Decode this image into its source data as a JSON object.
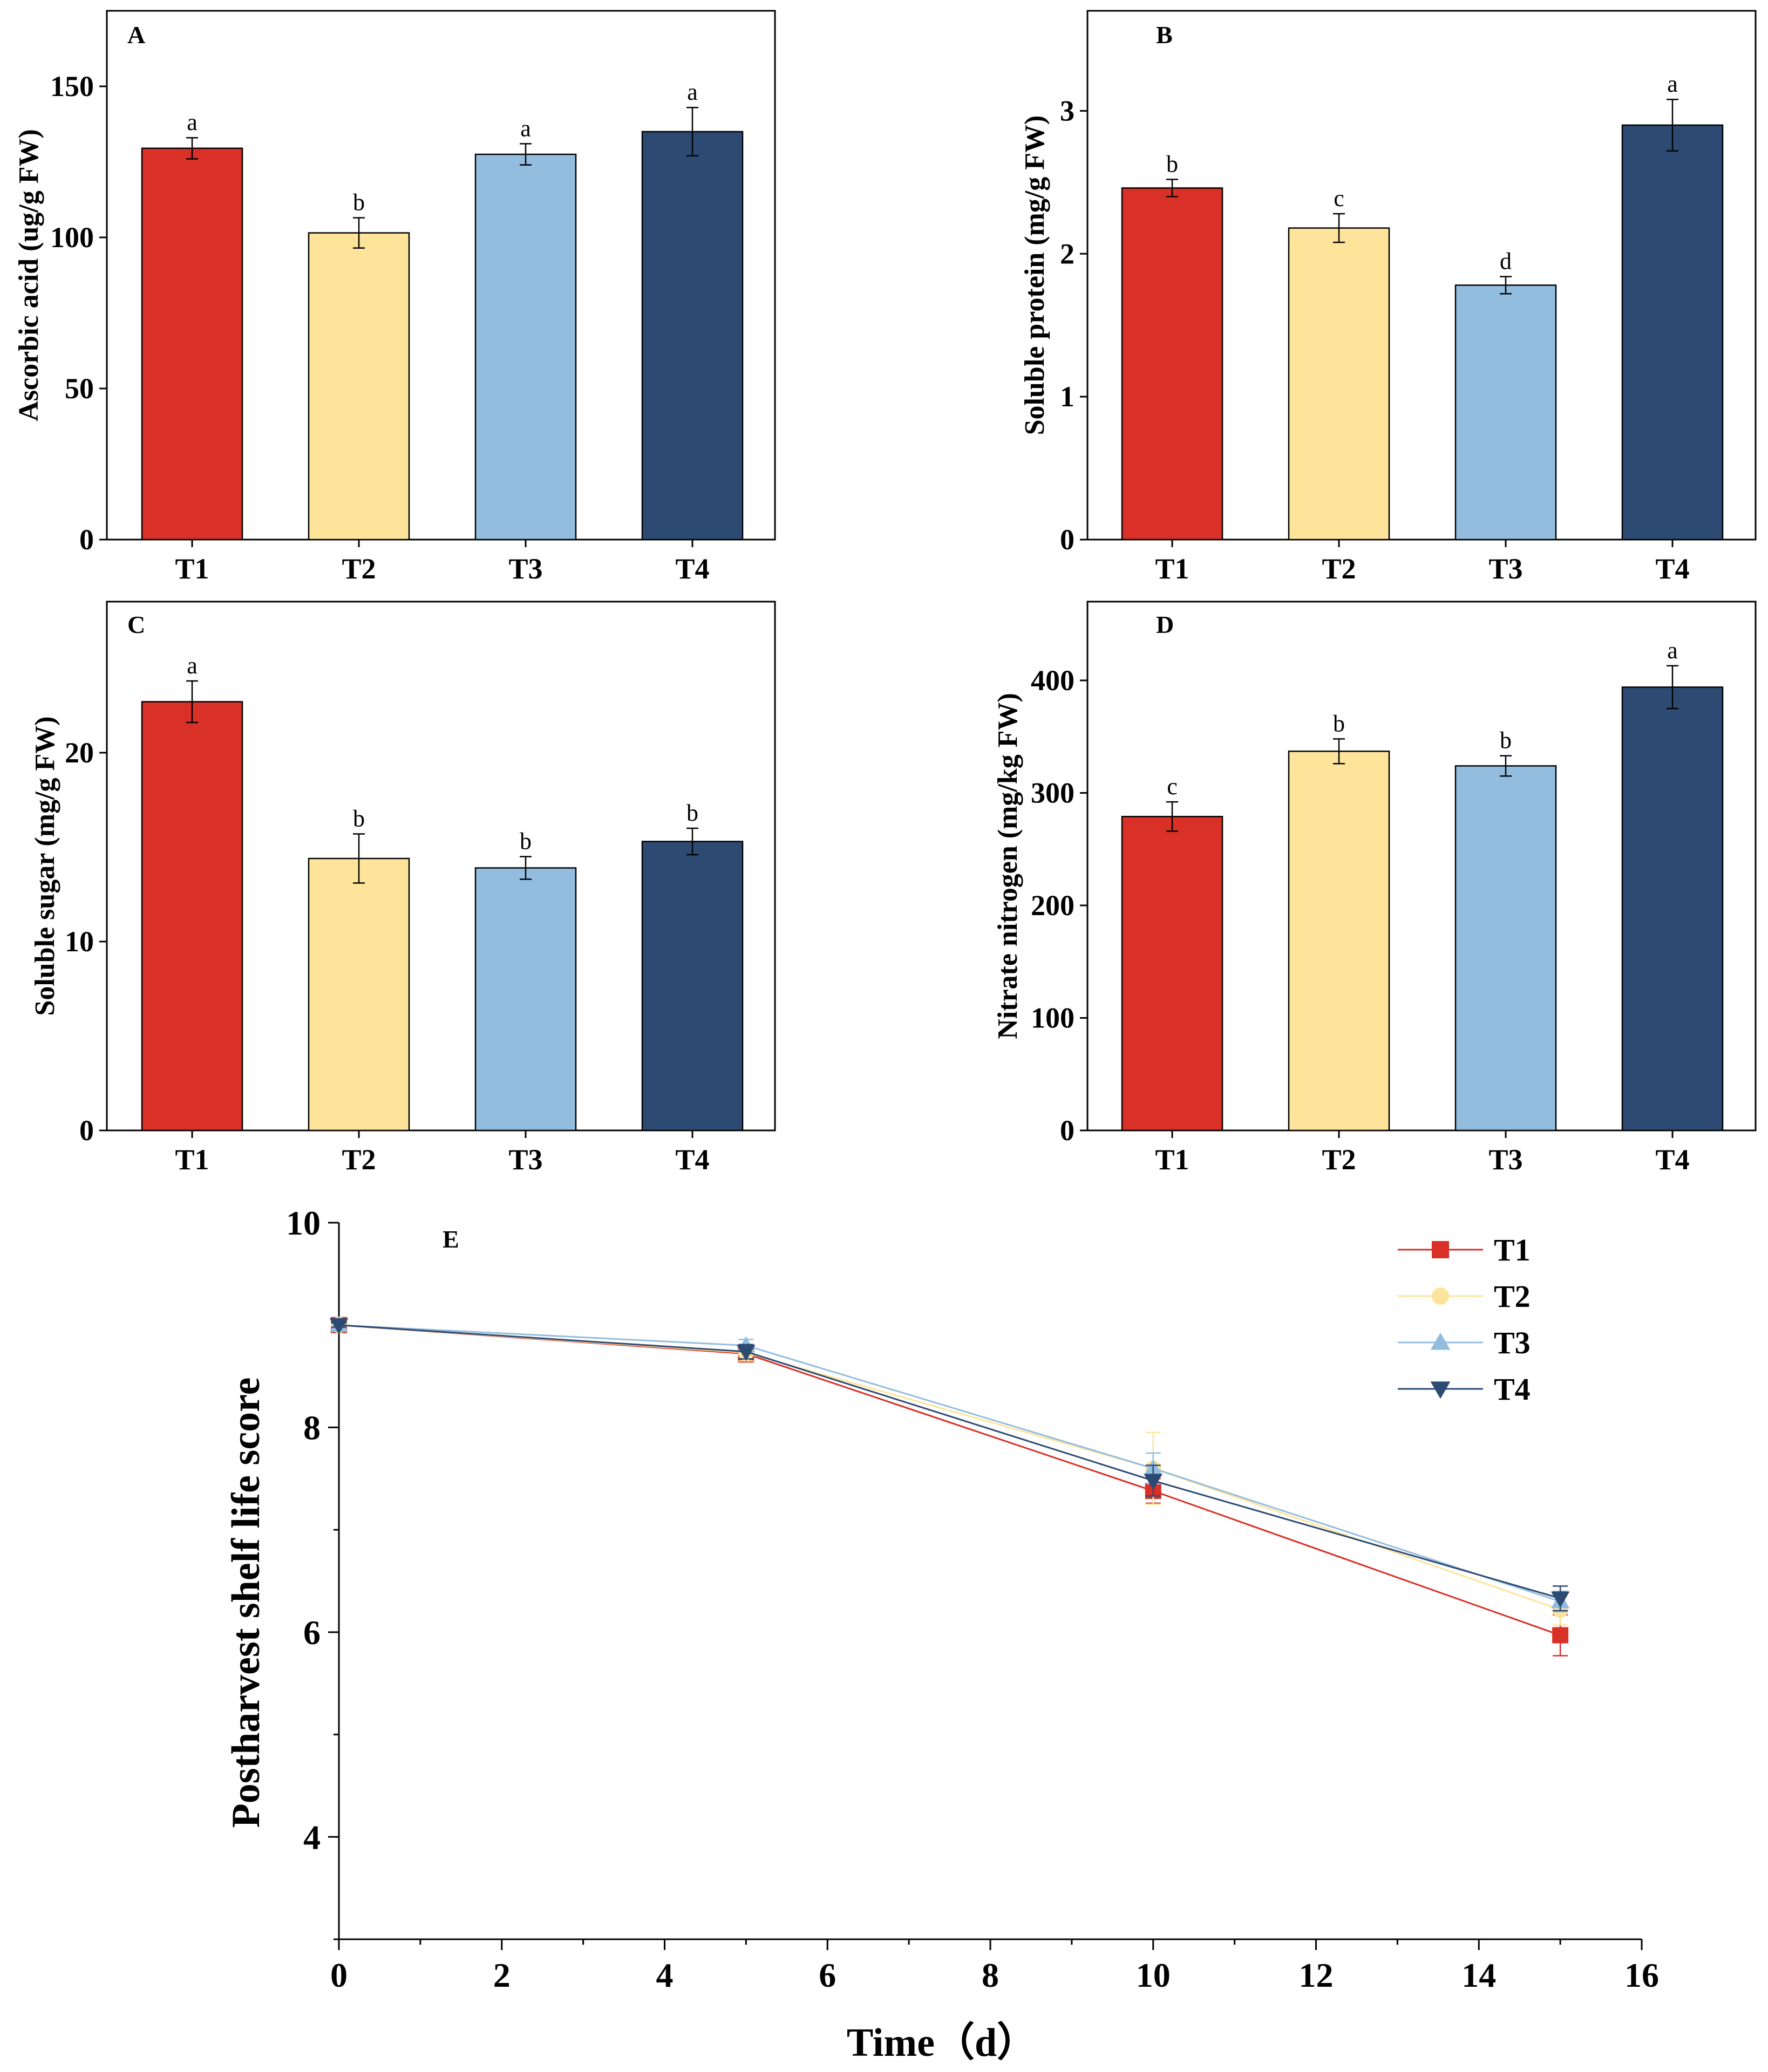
{
  "chart_data": [
    {
      "type": "bar",
      "panel": "A",
      "categories": [
        "T1",
        "T2",
        "T3",
        "T4"
      ],
      "values": [
        129.5,
        101.5,
        127.5,
        135
      ],
      "errors": [
        3.5,
        5,
        3.5,
        8
      ],
      "significance": [
        "a",
        "b",
        "a",
        "a"
      ],
      "colors": [
        "#d93027",
        "#fde49a",
        "#93bddf",
        "#2c4a72"
      ],
      "ylabel": "Ascorbic acid (ug/g FW)",
      "ylim": [
        0,
        175
      ],
      "yticks": [
        0,
        50,
        100,
        150
      ]
    },
    {
      "type": "bar",
      "panel": "B",
      "categories": [
        "T1",
        "T2",
        "T3",
        "T4"
      ],
      "values": [
        2.46,
        2.18,
        1.78,
        2.9
      ],
      "errors": [
        0.06,
        0.1,
        0.06,
        0.18
      ],
      "significance": [
        "b",
        "c",
        "d",
        "a"
      ],
      "colors": [
        "#d93027",
        "#fde49a",
        "#93bddf",
        "#2c4a72"
      ],
      "ylabel": "Soluble protein (mg/g FW)",
      "ylim": [
        0,
        3.7
      ],
      "yticks": [
        0,
        1,
        2,
        3
      ]
    },
    {
      "type": "bar",
      "panel": "C",
      "categories": [
        "T1",
        "T2",
        "T3",
        "T4"
      ],
      "values": [
        22.7,
        14.4,
        13.9,
        15.3
      ],
      "errors": [
        1.1,
        1.3,
        0.6,
        0.7
      ],
      "significance": [
        "a",
        "b",
        "b",
        "b"
      ],
      "colors": [
        "#d93027",
        "#fde49a",
        "#93bddf",
        "#2c4a72"
      ],
      "ylabel": "Soluble sugar (mg/g FW)",
      "ylim": [
        0,
        28
      ],
      "yticks": [
        0,
        10,
        20
      ]
    },
    {
      "type": "bar",
      "panel": "D",
      "categories": [
        "T1",
        "T2",
        "T3",
        "T4"
      ],
      "values": [
        279,
        337,
        324,
        394
      ],
      "errors": [
        13,
        11,
        9,
        19
      ],
      "significance": [
        "c",
        "b",
        "b",
        "a"
      ],
      "colors": [
        "#d93027",
        "#fde49a",
        "#93bddf",
        "#2c4a72"
      ],
      "ylabel": "Nitrate nitrogen (mg/kg FW)",
      "ylim": [
        0,
        470
      ],
      "yticks": [
        0,
        100,
        200,
        300,
        400
      ]
    },
    {
      "type": "line",
      "panel": "E",
      "xlabel": "Time（d）",
      "ylabel": "Postharvest shelf life score",
      "xlim": [
        0,
        16
      ],
      "ylim": [
        3,
        10
      ],
      "xticks": [
        0,
        2,
        4,
        6,
        8,
        10,
        12,
        14,
        16
      ],
      "yticks": [
        4,
        6,
        8,
        10
      ],
      "legend_position": "top-right",
      "x": [
        0,
        5,
        10,
        15
      ],
      "series": [
        {
          "name": "T1",
          "values": [
            9.0,
            8.72,
            7.38,
            5.97
          ],
          "errors": [
            0.02,
            0.08,
            0.12,
            0.2
          ],
          "color": "#d93027",
          "marker": "square"
        },
        {
          "name": "T2",
          "values": [
            9.0,
            8.73,
            7.6,
            6.22
          ],
          "errors": [
            0.02,
            0.08,
            0.35,
            0.15
          ],
          "color": "#fde49a",
          "marker": "circle"
        },
        {
          "name": "T3",
          "values": [
            9.0,
            8.8,
            7.6,
            6.3
          ],
          "errors": [
            0.02,
            0.06,
            0.15,
            0.1
          ],
          "color": "#93bddf",
          "marker": "triangle-up"
        },
        {
          "name": "T4",
          "values": [
            9.0,
            8.74,
            7.48,
            6.33
          ],
          "errors": [
            0.02,
            0.07,
            0.15,
            0.12
          ],
          "color": "#2c4a72",
          "marker": "triangle-down"
        }
      ]
    }
  ]
}
